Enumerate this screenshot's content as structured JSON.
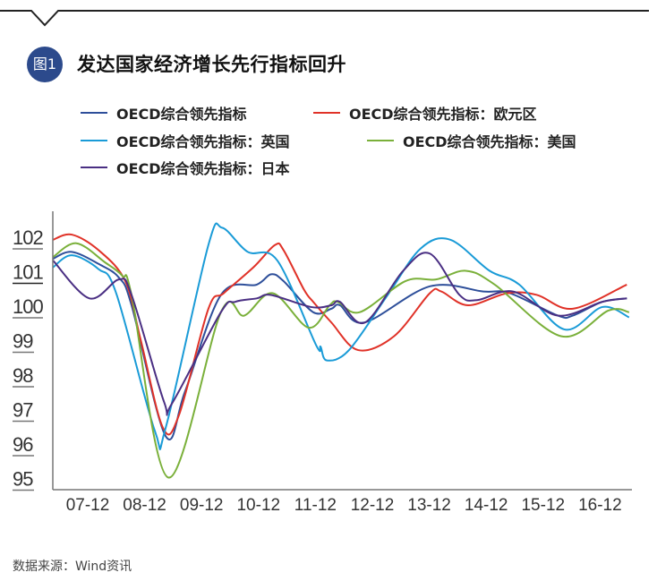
{
  "header": {
    "badge": "图1",
    "title": "发达国家经济增长先行指标回升"
  },
  "source": "数据来源：Wind资讯",
  "chart_data": {
    "type": "line",
    "title": "发达国家经济增长先行指标回升",
    "xlabel": "",
    "ylabel": "",
    "ylim": [
      95,
      102
    ],
    "xlim": [
      2007.31,
      2017.45
    ],
    "grid": false,
    "legend_placement": "top",
    "yticks": [
      "102",
      "101",
      "100",
      "99",
      "98",
      "97",
      "96",
      "95"
    ],
    "ytick_values": [
      102,
      101,
      100,
      99,
      98,
      97,
      96,
      95
    ],
    "xticks": [
      "07-12",
      "08-12",
      "09-12",
      "10-12",
      "11-12",
      "12-12",
      "13-12",
      "14-12",
      "15-12",
      "16-12"
    ],
    "xtick_values": [
      2007.92,
      2008.92,
      2009.92,
      2010.92,
      2011.92,
      2012.92,
      2013.92,
      2014.92,
      2015.92,
      2016.92
    ],
    "series": [
      {
        "name": "OECD综合领先指标",
        "color": "#2e4f9a",
        "points": [
          [
            2007.31,
            101.35
          ],
          [
            2007.64,
            101.55
          ],
          [
            2008.11,
            101.2
          ],
          [
            2008.47,
            100.8
          ],
          [
            2008.69,
            100.0
          ],
          [
            2009.29,
            96.2
          ],
          [
            2009.63,
            97.5
          ],
          [
            2010.26,
            100.3
          ],
          [
            2010.89,
            100.6
          ],
          [
            2011.14,
            100.9
          ],
          [
            2011.36,
            100.7
          ],
          [
            2011.88,
            99.8
          ],
          [
            2012.2,
            99.9
          ],
          [
            2012.35,
            100.0
          ],
          [
            2012.78,
            99.5
          ],
          [
            2013.93,
            100.55
          ],
          [
            2014.87,
            100.4
          ],
          [
            2015.34,
            100.35
          ],
          [
            2016.18,
            99.7
          ],
          [
            2016.44,
            99.7
          ],
          [
            2016.96,
            100.1
          ],
          [
            2017.39,
            100.2
          ]
        ]
      },
      {
        "name": "OECD综合领先指标：欧元区",
        "color": "#e03228",
        "points": [
          [
            2007.31,
            101.9
          ],
          [
            2007.64,
            102.05
          ],
          [
            2008.11,
            101.6
          ],
          [
            2008.58,
            100.7
          ],
          [
            2008.85,
            99.0
          ],
          [
            2009.24,
            96.45
          ],
          [
            2009.52,
            96.8
          ],
          [
            2010.04,
            99.9
          ],
          [
            2010.31,
            100.35
          ],
          [
            2010.83,
            101.1
          ],
          [
            2011.21,
            101.75
          ],
          [
            2011.36,
            101.6
          ],
          [
            2011.72,
            100.45
          ],
          [
            2011.88,
            100.1
          ],
          [
            2012.2,
            99.5
          ],
          [
            2012.67,
            98.7
          ],
          [
            2013.3,
            99.1
          ],
          [
            2013.93,
            100.35
          ],
          [
            2014.13,
            100.4
          ],
          [
            2014.6,
            100.0
          ],
          [
            2015.29,
            100.35
          ],
          [
            2015.81,
            100.3
          ],
          [
            2016.44,
            99.9
          ],
          [
            2017.39,
            100.6
          ]
        ]
      },
      {
        "name": "OECD综合领先指标：英国",
        "color": "#1a9bd7",
        "points": [
          [
            2007.31,
            101.1
          ],
          [
            2007.64,
            101.45
          ],
          [
            2008.11,
            101.05
          ],
          [
            2008.42,
            100.35
          ],
          [
            2009.1,
            96.35
          ],
          [
            2009.29,
            96.45
          ],
          [
            2010.04,
            101.75
          ],
          [
            2010.28,
            102.25
          ],
          [
            2010.73,
            101.55
          ],
          [
            2011.25,
            101.3
          ],
          [
            2011.93,
            98.85
          ],
          [
            2012.01,
            98.8
          ],
          [
            2012.12,
            98.4
          ],
          [
            2012.51,
            98.7
          ],
          [
            2013.19,
            100.3
          ],
          [
            2013.77,
            101.65
          ],
          [
            2014.29,
            101.9
          ],
          [
            2014.98,
            101.0
          ],
          [
            2015.5,
            100.6
          ],
          [
            2016.29,
            99.3
          ],
          [
            2016.96,
            99.95
          ],
          [
            2017.43,
            99.65
          ]
        ]
      },
      {
        "name": "OECD综合领先指标：美国",
        "color": "#7ab03a",
        "points": [
          [
            2007.31,
            101.4
          ],
          [
            2007.72,
            101.8
          ],
          [
            2008.22,
            101.25
          ],
          [
            2008.53,
            100.85
          ],
          [
            2008.69,
            100.3
          ],
          [
            2009.34,
            95.0
          ],
          [
            2010.26,
            99.8
          ],
          [
            2010.67,
            99.7
          ],
          [
            2011.17,
            100.35
          ],
          [
            2011.8,
            99.35
          ],
          [
            2012.17,
            100.0
          ],
          [
            2012.31,
            100.1
          ],
          [
            2012.7,
            99.8
          ],
          [
            2013.5,
            100.7
          ],
          [
            2014.04,
            100.75
          ],
          [
            2014.56,
            101.0
          ],
          [
            2015.07,
            100.6
          ],
          [
            2016.24,
            99.1
          ],
          [
            2017.07,
            99.85
          ],
          [
            2017.43,
            99.8
          ]
        ]
      },
      {
        "name": "OECD综合领先指标：日本",
        "color": "#4a2f83",
        "points": [
          [
            2007.31,
            101.3
          ],
          [
            2007.95,
            100.2
          ],
          [
            2008.47,
            100.75
          ],
          [
            2008.69,
            100.3
          ],
          [
            2009.26,
            97.2
          ],
          [
            2009.4,
            97.15
          ],
          [
            2010.26,
            99.8
          ],
          [
            2010.51,
            100.1
          ],
          [
            2010.89,
            100.2
          ],
          [
            2011.14,
            100.3
          ],
          [
            2011.84,
            99.95
          ],
          [
            2012.2,
            100.0
          ],
          [
            2012.35,
            100.1
          ],
          [
            2012.79,
            99.5
          ],
          [
            2013.46,
            101.0
          ],
          [
            2013.93,
            101.5
          ],
          [
            2014.45,
            100.3
          ],
          [
            2014.76,
            100.15
          ],
          [
            2015.39,
            100.4
          ],
          [
            2016.18,
            99.7
          ],
          [
            2016.96,
            100.1
          ],
          [
            2017.39,
            100.2
          ]
        ]
      }
    ]
  }
}
